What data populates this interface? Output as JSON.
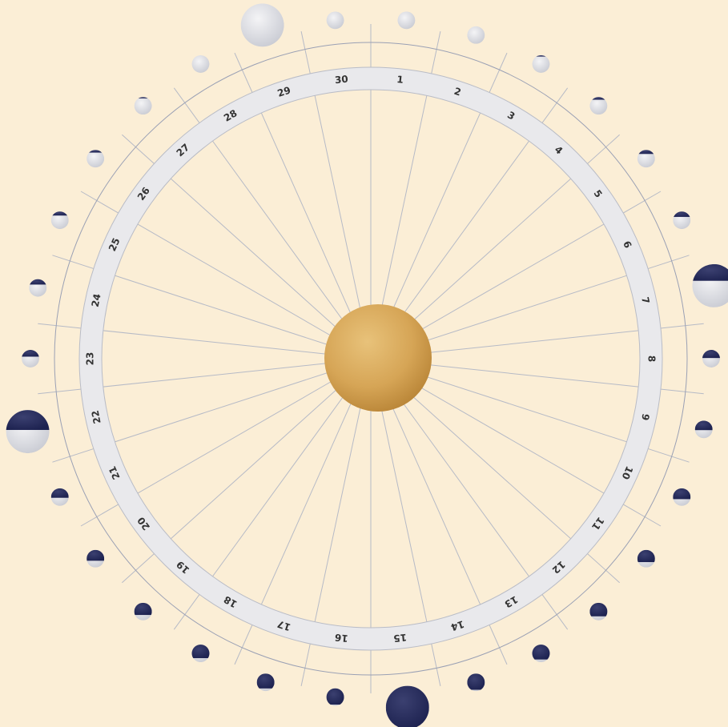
{
  "days": [
    "1",
    "2",
    "3",
    "4",
    "5",
    "6",
    "7",
    "8",
    "9",
    "10",
    "11",
    "12",
    "13",
    "14",
    "15",
    "16",
    "17",
    "18",
    "19",
    "20",
    "21",
    "22",
    "23",
    "24",
    "25",
    "26",
    "27",
    "28",
    "29",
    "30"
  ]
}
